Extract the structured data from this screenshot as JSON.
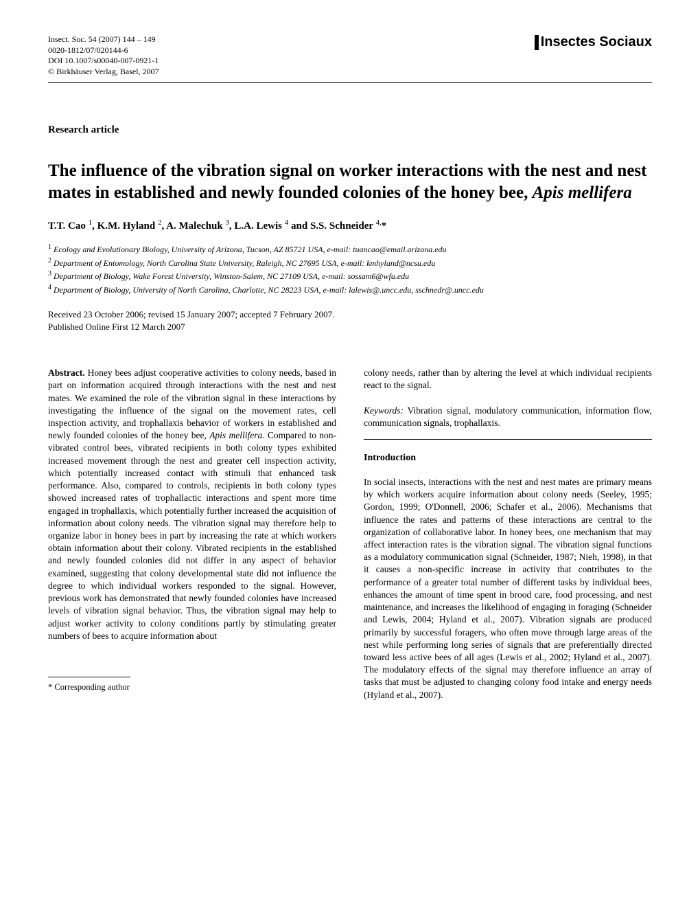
{
  "header": {
    "citation_line": "Insect. Soc. 54 (2007) 144 – 149",
    "issn": "0020-1812/07/020144-6",
    "doi": "DOI 10.1007/s00040-007-0921-1",
    "copyright": "© Birkhäuser Verlag, Basel, 2007",
    "journal_brand": "Insectes Sociaux"
  },
  "article_type": "Research article",
  "title_main": "The influence of the vibration signal on worker interactions with the nest and nest mates in established and newly founded colonies of the honey bee, ",
  "title_species": "Apis mellifera",
  "authors_html": "T.T. Cao <sup>1</sup>, K.M. Hyland <sup>2</sup>, A. Malechuk <sup>3</sup>, L.A. Lewis <sup>4</sup> and S.S. Schneider <sup>4,</sup>*",
  "affiliations": [
    {
      "num": "1",
      "text": "Ecology and Evolutionary Biology, University of Arizona, Tucson, AZ 85721 USA, e-mail: tuancao@email.arizona.edu"
    },
    {
      "num": "2",
      "text": "Department of Entomology, North Carolina State University, Raleigh, NC 27695 USA, e-mail: kmhyland@ncsu.edu"
    },
    {
      "num": "3",
      "text": "Department of Biology, Wake Forest University, Winston-Salem, NC 27109 USA, e-mail: sossam6@wfu.edu"
    },
    {
      "num": "4",
      "text": "Department of Biology, University of North Carolina, Charlotte, NC 28223 USA, e-mail: lalewis@.uncc.edu, sschnedr@.uncc.edu"
    }
  ],
  "dates": {
    "received": "Received 23 October 2006; revised 15 January 2007; accepted 7 February 2007.",
    "published": "Published Online First 12 March 2007"
  },
  "abstract": {
    "label": "Abstract.",
    "text_part1": " Honey bees adjust cooperative activities to colony needs, based in part on information acquired through interactions with the nest and nest mates. We examined the role of the vibration signal in these interactions by investigating the influence of the signal on the movement rates, cell inspection activity, and trophallaxis behavior of workers in established and newly founded colonies of the honey bee, ",
    "species": "Apis mellifera",
    "text_part2": ". Compared to non-vibrated control bees, vibrated recipients in both colony types exhibited increased movement through the nest and greater cell inspection activity, which potentially increased contact with stimuli that enhanced task performance. Also, compared to controls, recipients in both colony types showed increased rates of trophallactic interactions and spent more time engaged in trophallaxis, which potentially further increased the acquisition of information about colony needs. The vibration signal may therefore help to organize labor in honey bees in part by increasing the rate at which workers obtain information about their colony. Vibrated recipients in the established and newly founded colonies did not differ in any aspect of behavior examined, suggesting that colony developmental state did not influence the degree to which individual workers responded to the signal. However, previous work has demonstrated that newly founded colonies have increased levels of vibration signal behavior. Thus, the vibration signal may help to adjust worker activity to colony conditions partly by stimulating greater numbers of bees to acquire information about",
    "continuation": "colony needs, rather than by altering the level at which individual recipients react to the signal."
  },
  "keywords": {
    "label": "Keywords:",
    "text": " Vibration signal, modulatory communication, information flow, communication signals, trophallaxis."
  },
  "introduction": {
    "heading": "Introduction",
    "text": "In social insects, interactions with the nest and nest mates are primary means by which workers acquire information about colony needs (Seeley, 1995; Gordon, 1999; O'Donnell, 2006; Schafer et al., 2006). Mechanisms that influence the rates and patterns of these interactions are central to the organization of collaborative labor. In honey bees, one mechanism that may affect interaction rates is the vibration signal. The vibration signal functions as a modulatory communication signal (Schneider, 1987; Nieh, 1998), in that it causes a non-specific increase in activity that contributes to the performance of a greater total number of different tasks by individual bees, enhances the amount of time spent in brood care, food processing, and nest maintenance, and increases the likelihood of engaging in foraging (Schneider and Lewis, 2004; Hyland et al., 2007). Vibration signals are produced primarily by successful foragers, who often move through large areas of the nest while performing long series of signals that are preferentially directed toward less active bees of all ages (Lewis et al., 2002; Hyland et al., 2007). The modulatory effects of the signal may therefore influence an array of tasks that must be adjusted to changing colony food intake and energy needs (Hyland et al., 2007)."
  },
  "footnote": "* Corresponding author"
}
